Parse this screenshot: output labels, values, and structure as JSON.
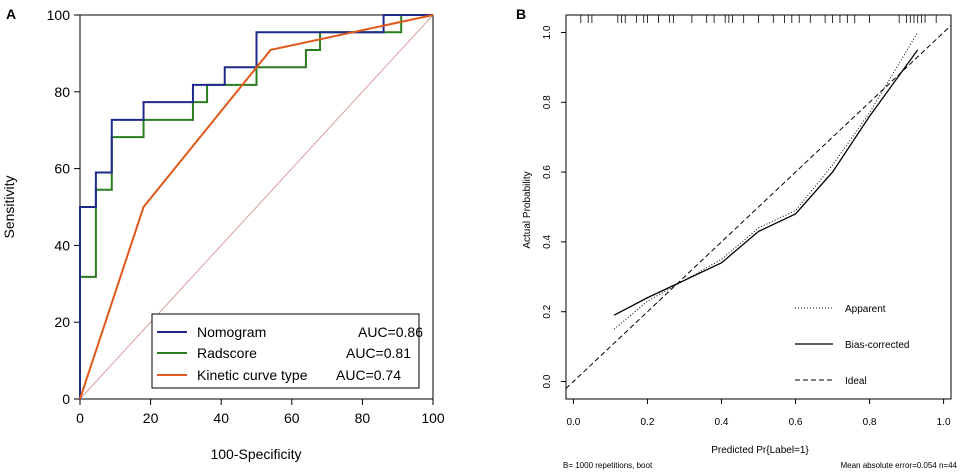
{
  "panels": {
    "a_label": "A",
    "b_label": "B"
  },
  "chart_data": [
    {
      "type": "line",
      "panel": "A",
      "title": "",
      "xlabel": "100-Specificity",
      "ylabel": "Sensitivity",
      "xlim": [
        0,
        100
      ],
      "ylim": [
        0,
        100
      ],
      "xticks": [
        "0",
        "20",
        "40",
        "60",
        "80",
        "100"
      ],
      "yticks": [
        "0",
        "20",
        "40",
        "60",
        "80",
        "100"
      ],
      "legend_position": "bottom-right",
      "series": [
        {
          "name": "Nomogram",
          "auc": "AUC=0.86",
          "color": "#1f2a8c",
          "points": [
            [
              0,
              0
            ],
            [
              0,
              50
            ],
            [
              4.5,
              50
            ],
            [
              4.5,
              59
            ],
            [
              9,
              59
            ],
            [
              9,
              72.7
            ],
            [
              18,
              72.7
            ],
            [
              18,
              77.3
            ],
            [
              32,
              77.3
            ],
            [
              32,
              81.8
            ],
            [
              36,
              81.8
            ],
            [
              36,
              81.8
            ],
            [
              41,
              81.8
            ],
            [
              41,
              86.4
            ],
            [
              50,
              86.4
            ],
            [
              50,
              95.5
            ],
            [
              86,
              95.5
            ],
            [
              86,
              100
            ],
            [
              100,
              100
            ]
          ]
        },
        {
          "name": "Radscore",
          "auc": "AUC=0.81",
          "color": "#2a7d1e",
          "points": [
            [
              0,
              0
            ],
            [
              0,
              31.8
            ],
            [
              4.5,
              31.8
            ],
            [
              4.5,
              54.5
            ],
            [
              9,
              54.5
            ],
            [
              9,
              68.2
            ],
            [
              18,
              68.2
            ],
            [
              18,
              72.7
            ],
            [
              32,
              72.7
            ],
            [
              32,
              77.3
            ],
            [
              36,
              77.3
            ],
            [
              36,
              81.8
            ],
            [
              50,
              81.8
            ],
            [
              50,
              86.4
            ],
            [
              64,
              86.4
            ],
            [
              64,
              90.9
            ],
            [
              68,
              90.9
            ],
            [
              68,
              95.5
            ],
            [
              91,
              95.5
            ],
            [
              91,
              100
            ],
            [
              100,
              100
            ]
          ]
        },
        {
          "name": "Kinetic curve type",
          "auc": "AUC=0.74",
          "color": "#e0591b",
          "points": [
            [
              0,
              0
            ],
            [
              18,
              50
            ],
            [
              54,
              90.9
            ],
            [
              100,
              100
            ]
          ]
        },
        {
          "name": "reference",
          "color": "#d9a0a0",
          "points": [
            [
              0,
              0
            ],
            [
              100,
              100
            ]
          ]
        }
      ]
    },
    {
      "type": "line",
      "panel": "B",
      "title": "",
      "xlabel": "Predicted Pr{Label=1}",
      "ylabel": "Actual Probability",
      "xlim": [
        -0.02,
        1.02
      ],
      "ylim": [
        -0.05,
        1.05
      ],
      "xticks": [
        "0.0",
        "0.2",
        "0.4",
        "0.6",
        "0.8",
        "1.0"
      ],
      "yticks": [
        "0.0",
        "0.2",
        "0.4",
        "0.6",
        "0.8",
        "1.0"
      ],
      "legend_position": "bottom-right",
      "footer_left": "B= 1000 repetitions, boot",
      "footer_right": "Mean absolute error=0.054 n=44",
      "rug": [
        0.02,
        0.04,
        0.05,
        0.12,
        0.13,
        0.14,
        0.17,
        0.19,
        0.2,
        0.23,
        0.26,
        0.27,
        0.32,
        0.36,
        0.38,
        0.41,
        0.42,
        0.43,
        0.46,
        0.5,
        0.54,
        0.57,
        0.59,
        0.61,
        0.64,
        0.68,
        0.7,
        0.72,
        0.74,
        0.76,
        0.8,
        0.88,
        0.9,
        0.91,
        0.92,
        0.93,
        0.94,
        0.95,
        0.98
      ],
      "series": [
        {
          "name": "Apparent",
          "dash": "1,2",
          "points": [
            [
              0.11,
              0.15
            ],
            [
              0.2,
              0.23
            ],
            [
              0.3,
              0.29
            ],
            [
              0.4,
              0.35
            ],
            [
              0.5,
              0.44
            ],
            [
              0.56,
              0.47
            ],
            [
              0.6,
              0.49
            ],
            [
              0.7,
              0.62
            ],
            [
              0.8,
              0.77
            ],
            [
              0.93,
              1.0
            ]
          ]
        },
        {
          "name": "Bias-corrected",
          "dash": "",
          "points": [
            [
              0.11,
              0.19
            ],
            [
              0.2,
              0.24
            ],
            [
              0.3,
              0.29
            ],
            [
              0.4,
              0.34
            ],
            [
              0.5,
              0.43
            ],
            [
              0.56,
              0.46
            ],
            [
              0.6,
              0.48
            ],
            [
              0.7,
              0.6
            ],
            [
              0.8,
              0.76
            ],
            [
              0.93,
              0.95
            ]
          ]
        },
        {
          "name": "Ideal",
          "dash": "5,3",
          "points": [
            [
              -0.02,
              -0.02
            ],
            [
              1.02,
              1.02
            ]
          ]
        }
      ]
    }
  ]
}
